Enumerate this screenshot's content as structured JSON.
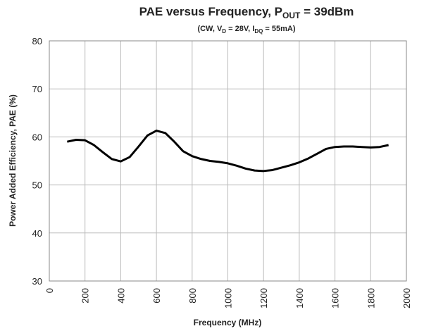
{
  "chart_data": {
    "type": "line",
    "title": [
      "PAE versus Frequency, P",
      "OUT",
      " = 39dBm"
    ],
    "subtitle": [
      "(CW, V",
      "D",
      " = 28V, I",
      "DQ",
      " = 55mA)"
    ],
    "x_label": "Frequency (MHz)",
    "y_label": "Power Added  Efficiency, PAE (%)",
    "x": [
      100,
      150,
      200,
      250,
      300,
      350,
      400,
      450,
      500,
      550,
      600,
      650,
      700,
      750,
      800,
      850,
      900,
      950,
      1000,
      1050,
      1100,
      1150,
      1200,
      1250,
      1300,
      1350,
      1400,
      1450,
      1500,
      1550,
      1600,
      1650,
      1700,
      1750,
      1800,
      1850,
      1900
    ],
    "series": [
      {
        "color": "#000000",
        "values": [
          59.0,
          59.4,
          59.3,
          58.3,
          56.8,
          55.4,
          54.9,
          55.8,
          58.0,
          60.3,
          61.3,
          60.8,
          59.0,
          57.0,
          56.0,
          55.4,
          55.0,
          54.8,
          54.5,
          54.0,
          53.4,
          53.0,
          52.9,
          53.1,
          53.6,
          54.1,
          54.7,
          55.5,
          56.5,
          57.5,
          57.9,
          58.0,
          58.0,
          57.9,
          57.8,
          57.9,
          58.3
        ]
      }
    ],
    "xlim": [
      0,
      2000
    ],
    "xticks": [
      0,
      200,
      400,
      600,
      800,
      1000,
      1200,
      1400,
      1600,
      1800,
      2000
    ],
    "ylim": [
      30,
      80
    ],
    "yticks": [
      30,
      40,
      50,
      60,
      70,
      80
    ],
    "grid": true
  }
}
